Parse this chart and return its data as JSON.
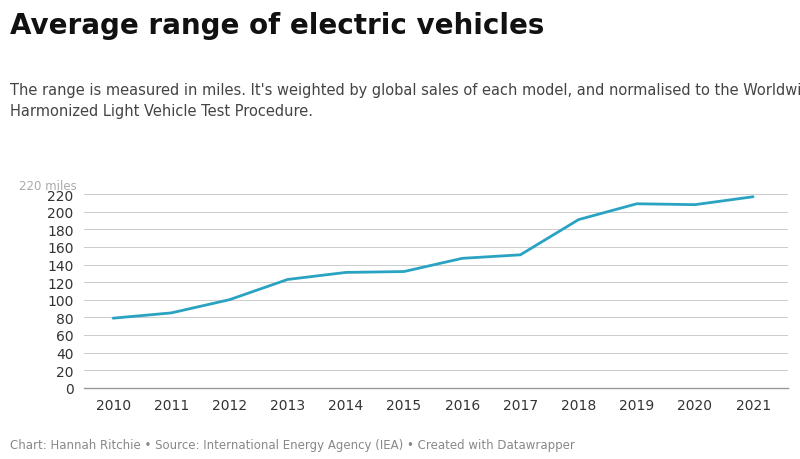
{
  "title": "Average range of electric vehicles",
  "subtitle": "The range is measured in miles. It's weighted by global sales of each model, and normalised to the Worldwide\nHarmonized Light Vehicle Test Procedure.",
  "footer": "Chart: Hannah Ritchie • Source: International Energy Agency (IEA) • Created with Datawrapper",
  "years": [
    2010,
    2011,
    2012,
    2013,
    2014,
    2015,
    2016,
    2017,
    2018,
    2019,
    2020,
    2021
  ],
  "values": [
    79,
    85,
    100,
    123,
    131,
    132,
    147,
    151,
    191,
    209,
    208,
    217
  ],
  "line_color": "#2aa3c2",
  "background_color": "#ffffff",
  "grid_color": "#cccccc",
  "axis_color": "#333333",
  "text_color": "#333333",
  "subtitle_color": "#444444",
  "footer_color": "#888888",
  "ylim": [
    0,
    230
  ],
  "yticks": [
    0,
    20,
    40,
    60,
    80,
    100,
    120,
    140,
    160,
    180,
    200,
    220
  ],
  "ylabel_text": "220 miles",
  "line_width": 2.0,
  "title_fontsize": 20,
  "subtitle_fontsize": 10.5,
  "tick_fontsize": 10,
  "footer_fontsize": 8.5
}
